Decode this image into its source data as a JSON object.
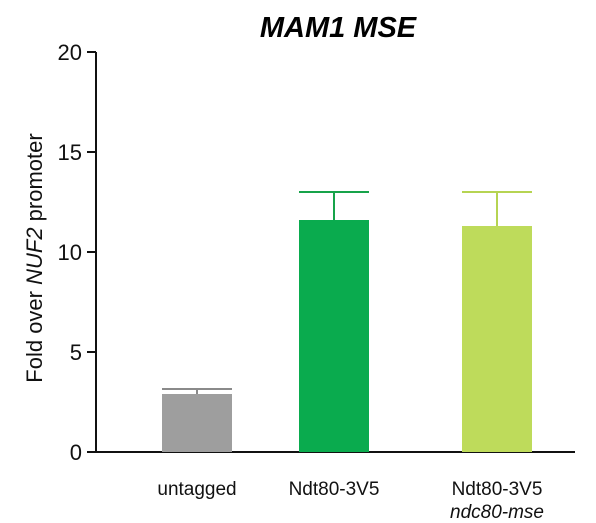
{
  "chart_data": {
    "type": "bar",
    "title": "MAM1 MSE",
    "ylabel": {
      "before": "Fold over ",
      "italic": "NUF2",
      "after": " promoter"
    },
    "ylim": [
      0,
      20
    ],
    "yticks": [
      0,
      5,
      10,
      15,
      20
    ],
    "categories": [
      {
        "line1": "untagged",
        "line2": ""
      },
      {
        "line1": "Ndt80-3V5",
        "line2": ""
      },
      {
        "line1": "Ndt80-3V5",
        "line2": "ndc80-mse"
      }
    ],
    "values": [
      2.9,
      11.6,
      11.3
    ],
    "error_upper": [
      3.15,
      13.0,
      13.0
    ],
    "colors": [
      "#9e9e9e",
      "#0aab4e",
      "#bedb5b"
    ],
    "error_colors": [
      "#8a8a8a",
      "#17a34a",
      "#b6d452"
    ]
  }
}
